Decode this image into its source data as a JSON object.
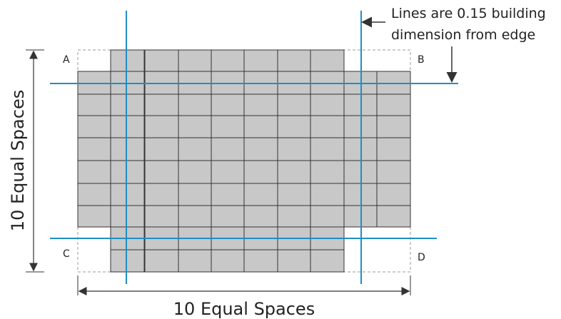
{
  "corners": {
    "a": "A",
    "b": "B",
    "c": "C",
    "d": "D"
  },
  "annotation": {
    "line1": "Lines are 0.15 building",
    "line2": "dimension from edge"
  },
  "dimensions": {
    "vertical": "10 Equal Spaces",
    "horizontal": "10 Equal Spaces"
  },
  "colors": {
    "cell_fill": "#c8c8c8",
    "grid_line": "#333333",
    "axis_line": "#1f8fc4",
    "dashed_outline": "#999999"
  }
}
